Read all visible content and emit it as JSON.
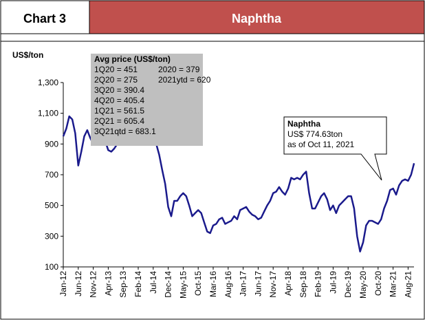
{
  "chart_data": {
    "type": "line",
    "header": "Chart 3",
    "title": "Naphtha",
    "y_label": "US$/ton",
    "avg_box": {
      "title": "Avg price (US$/ton)",
      "left": [
        "1Q20 = 451",
        "2Q20 = 275",
        "3Q20 = 390.4",
        "4Q20 = 405.4",
        "1Q21 = 561.5",
        "2Q21 = 605.4",
        "3Q21qtd = 683.1"
      ],
      "right": [
        "2020 = 379",
        "2021ytd = 620"
      ]
    },
    "callout": {
      "title": "Naphtha",
      "lines": [
        "US$ 774.63ton",
        "as of Oct 11, 2021"
      ]
    },
    "categories": [
      "Jan-12",
      null,
      null,
      null,
      null,
      "Jun-12",
      null,
      null,
      null,
      null,
      "Nov-12",
      null,
      null,
      null,
      null,
      "Apr-13",
      null,
      null,
      null,
      null,
      "Sep-13",
      null,
      null,
      null,
      null,
      "Feb-14",
      null,
      null,
      null,
      null,
      "Jul-14",
      null,
      null,
      null,
      null,
      "Dec-14",
      null,
      null,
      null,
      null,
      "May-15",
      null,
      null,
      null,
      null,
      "Oct-15",
      null,
      null,
      null,
      null,
      "Mar-16",
      null,
      null,
      null,
      null,
      "Aug-16",
      null,
      null,
      null,
      null,
      "Jan-17",
      null,
      null,
      null,
      null,
      "Jun-17",
      null,
      null,
      null,
      null,
      "Nov-17",
      null,
      null,
      null,
      null,
      "Apr-18",
      null,
      null,
      null,
      null,
      "Sep-18",
      null,
      null,
      null,
      null,
      "Feb-19",
      null,
      null,
      null,
      null,
      "Jul-19",
      null,
      null,
      null,
      null,
      "Dec-19",
      null,
      null,
      null,
      null,
      "May-20",
      null,
      null,
      null,
      null,
      "Oct-20",
      null,
      null,
      null,
      null,
      "Mar-21",
      null,
      null,
      null,
      null,
      "Aug-21",
      null,
      null
    ],
    "series": [
      {
        "name": "Naphtha",
        "color": "#1a1a8c",
        "values": [
          950,
          1000,
          1080,
          1060,
          970,
          760,
          850,
          950,
          990,
          940,
          900,
          950,
          960,
          980,
          920,
          860,
          850,
          870,
          900,
          920,
          910,
          920,
          930,
          960,
          950,
          940,
          930,
          950,
          960,
          970,
          940,
          900,
          830,
          730,
          640,
          490,
          430,
          530,
          530,
          560,
          580,
          560,
          500,
          430,
          450,
          470,
          450,
          390,
          330,
          320,
          370,
          380,
          410,
          420,
          380,
          390,
          400,
          430,
          410,
          470,
          480,
          490,
          460,
          440,
          430,
          410,
          420,
          460,
          500,
          530,
          580,
          590,
          620,
          590,
          570,
          610,
          680,
          670,
          680,
          670,
          700,
          720,
          580,
          480,
          480,
          520,
          560,
          580,
          540,
          470,
          500,
          450,
          500,
          520,
          540,
          560,
          560,
          480,
          300,
          200,
          260,
          370,
          400,
          400,
          390,
          380,
          410,
          480,
          530,
          600,
          610,
          570,
          630,
          660,
          670,
          660,
          700,
          775
        ]
      }
    ],
    "ylim": [
      100,
      1300
    ],
    "yticks": [
      {
        "value": 100,
        "label": "100"
      },
      {
        "value": 300,
        "label": "300"
      },
      {
        "value": 500,
        "label": "500"
      },
      {
        "value": 700,
        "label": "700"
      },
      {
        "value": 900,
        "label": "900"
      },
      {
        "value": 1100,
        "label": "1,100"
      },
      {
        "value": 1300,
        "label": "1,300"
      }
    ]
  }
}
